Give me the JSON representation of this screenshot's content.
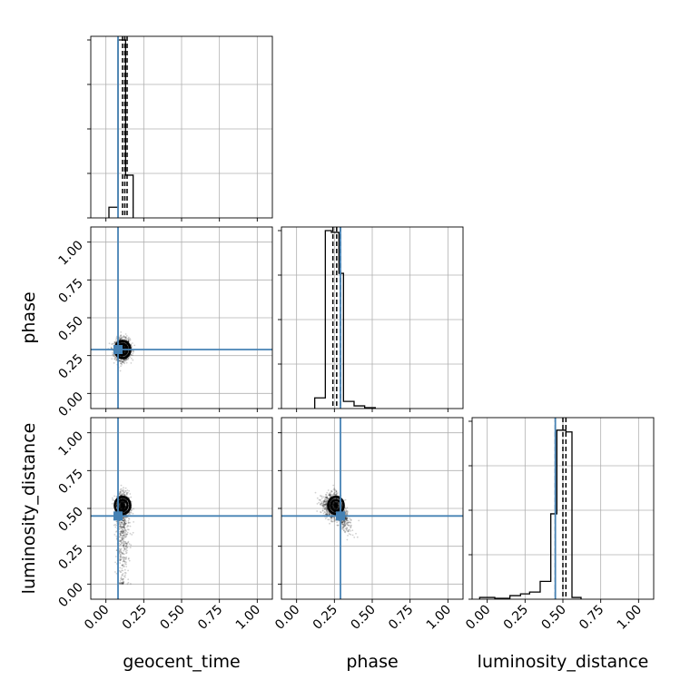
{
  "chart_data": {
    "type": "corner",
    "parameters": [
      "geocent_time",
      "phase",
      "luminosity_distance"
    ],
    "axis_range": [
      -0.1,
      1.1
    ],
    "tick_values": [
      0.0,
      0.25,
      0.5,
      0.75,
      1.0
    ],
    "tick_labels": [
      "0.00",
      "0.25",
      "0.50",
      "0.75",
      "1.00"
    ],
    "grid": true,
    "truth_color": "#4682b4",
    "truths": {
      "geocent_time": 0.08,
      "phase": 0.29,
      "luminosity_distance": 0.45
    },
    "quantiles": {
      "geocent_time": [
        0.11,
        0.125,
        0.14
      ],
      "phase": [
        0.24,
        0.265,
        0.29
      ],
      "luminosity_distance": [
        0.45,
        0.5,
        0.52
      ]
    },
    "histograms": {
      "geocent_time": {
        "bin_edges": [
          0.02,
          0.08,
          0.13,
          0.18
        ],
        "heights": [
          0.06,
          1.0,
          0.24
        ]
      },
      "phase": {
        "bin_edges": [
          0.12,
          0.19,
          0.23,
          0.28,
          0.31,
          0.38,
          0.45,
          0.52
        ],
        "heights": [
          0.06,
          1.0,
          0.99,
          0.76,
          0.04,
          0.015,
          0.005
        ]
      },
      "luminosity_distance": {
        "bin_edges": [
          -0.05,
          0.05,
          0.15,
          0.22,
          0.28,
          0.35,
          0.42,
          0.46,
          0.52,
          0.56,
          0.62
        ],
        "heights": [
          0.01,
          0.005,
          0.02,
          0.03,
          0.04,
          0.1,
          0.48,
          0.95,
          0.94,
          0.01
        ]
      }
    },
    "scatter_centers": {
      "phase_vs_geocent_time": [
        0.11,
        0.29
      ],
      "luminosity_distance_vs_geocent_time": [
        0.11,
        0.52
      ],
      "luminosity_distance_vs_phase": [
        0.26,
        0.52
      ]
    }
  }
}
